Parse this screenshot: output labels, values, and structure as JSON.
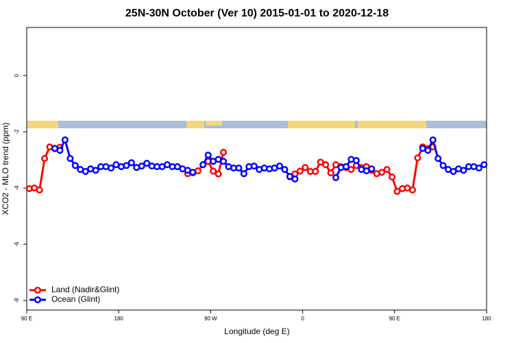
{
  "chart_data": {
    "type": "line",
    "title": "25N-30N October (Ver 10)   2015-01-01 to 2020-12-18",
    "x_label": "Longitude (deg E)",
    "y_label": "XCO2 - MLO trend (ppm)",
    "x": [
      92.5,
      97.5,
      102.5,
      107.5,
      112.5,
      117.5,
      122.5,
      127.5,
      132.5,
      137.5,
      142.5,
      147.5,
      152.5,
      157.5,
      162.5,
      167.5,
      172.5,
      177.5,
      182.5,
      187.5,
      192.5,
      197.5,
      202.5,
      207.5,
      212.5,
      217.5,
      222.5,
      227.5,
      232.5,
      237.5,
      242.5,
      247.5,
      252.5,
      257.5,
      262.5,
      267.5,
      272.5,
      277.5,
      282.5,
      287.5,
      292.5,
      297.5,
      302.5,
      307.5,
      312.5,
      317.5,
      322.5,
      327.5,
      332.5,
      337.5,
      342.5,
      347.5,
      352.5,
      357.5,
      362.5,
      367.5,
      372.5,
      377.5,
      382.5,
      387.5,
      392.5,
      397.5,
      402.5,
      407.5,
      412.5,
      417.5,
      422.5,
      427.5,
      432.5,
      437.5,
      442.5,
      447.5,
      452.5,
      457.5,
      462.5,
      467.5,
      472.5,
      477.5,
      482.5,
      487.5,
      492.5,
      497.5,
      502.5,
      507.5,
      512.5,
      517.5,
      522.5,
      527.5,
      532.5,
      537.5
    ],
    "series": [
      {
        "name": "Land (Nadir&Glint)",
        "color": "#ff0000",
        "values": [
          -4.02,
          -4.0,
          -4.07,
          -2.95,
          -2.54,
          -2.6,
          -2.55,
          null,
          null,
          null,
          null,
          null,
          null,
          null,
          null,
          null,
          null,
          null,
          null,
          null,
          null,
          null,
          null,
          null,
          null,
          null,
          null,
          null,
          null,
          null,
          null,
          -3.49,
          -3.46,
          -3.39,
          -3.17,
          -3.05,
          -3.4,
          -3.5,
          -2.73,
          null,
          null,
          null,
          null,
          null,
          null,
          null,
          null,
          null,
          null,
          null,
          null,
          -3.6,
          -3.5,
          -3.4,
          -3.27,
          -3.41,
          -3.41,
          -3.08,
          -3.17,
          -3.46,
          -3.17,
          -3.24,
          -3.27,
          -3.34,
          -3.2,
          -3.27,
          -3.24,
          -3.37,
          -3.49,
          -3.44,
          -3.34,
          -3.61,
          -4.12,
          -4.02,
          -4.0,
          -4.07,
          -2.93,
          -2.54,
          -2.6,
          -2.54,
          null,
          null,
          null,
          null,
          null,
          null,
          null,
          null,
          null,
          null
        ]
      },
      {
        "name": "Ocean (Glint)",
        "color": "#0000ff",
        "values": [
          null,
          null,
          null,
          null,
          null,
          -2.59,
          -2.66,
          -2.29,
          -2.95,
          -3.2,
          -3.34,
          -3.41,
          -3.32,
          -3.37,
          -3.24,
          -3.24,
          -3.29,
          -3.17,
          -3.24,
          -3.2,
          -3.1,
          -3.27,
          -3.22,
          -3.12,
          -3.22,
          -3.24,
          -3.24,
          -3.17,
          -3.24,
          -3.24,
          -3.32,
          -3.37,
          -3.44,
          null,
          -3.17,
          -2.83,
          -3.05,
          -2.98,
          -3.05,
          -3.24,
          -3.29,
          -3.29,
          -3.49,
          -3.24,
          -3.22,
          -3.34,
          -3.29,
          -3.32,
          -3.29,
          -3.22,
          -3.34,
          -3.59,
          -3.68,
          null,
          null,
          null,
          null,
          null,
          null,
          null,
          -3.63,
          -3.27,
          -3.24,
          -2.98,
          -3.02,
          -3.34,
          -3.39,
          -3.32,
          null,
          null,
          null,
          null,
          null,
          null,
          null,
          null,
          null,
          -2.59,
          -2.66,
          -2.29,
          -2.95,
          -3.2,
          -3.34,
          -3.41,
          -3.32,
          -3.37,
          -3.24,
          -3.24,
          -3.29,
          -3.17
        ]
      }
    ],
    "xlim": [
      90,
      540
    ],
    "xticks": [
      {
        "value": 90,
        "label": "90 E"
      },
      180,
      {
        "value": 270,
        "label": "90 W"
      },
      {
        "value": 360,
        "label": "0"
      },
      {
        "value": 450,
        "label": "90 E"
      },
      {
        "value": 540,
        "label": "180"
      }
    ],
    "ylim": [
      -8.34,
      1.71
    ],
    "yticks": [
      0,
      -2,
      -4,
      -6,
      -8
    ],
    "legend": "bottom-left"
  }
}
